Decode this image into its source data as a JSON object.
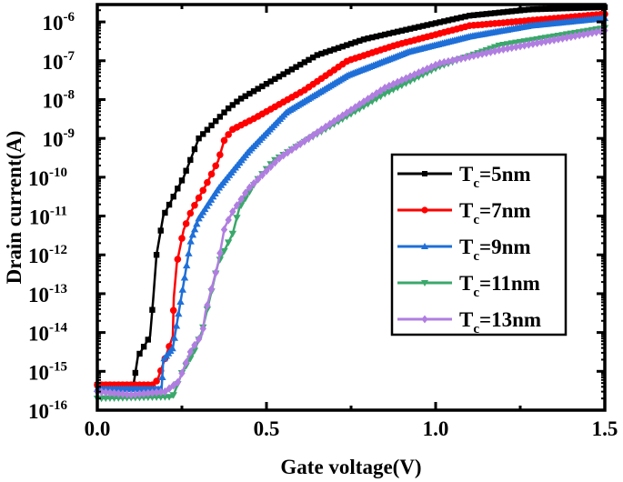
{
  "chart_data": {
    "type": "line",
    "title": "",
    "xlabel": "Gate voltage(V)",
    "ylabel": "Drain current(A)",
    "xlim": [
      0,
      1.5
    ],
    "ylim": [
      1e-16,
      2.8e-06
    ],
    "yscale": "log",
    "grid": false,
    "legend_position": "center-right",
    "xticks": [
      "0.0",
      "0.5",
      "1.0",
      "1.5"
    ],
    "xtick_values": [
      0,
      0.5,
      1.0,
      1.5
    ],
    "yticks": [
      {
        "base": "10",
        "exp": "-16"
      },
      {
        "base": "10",
        "exp": "-15"
      },
      {
        "base": "10",
        "exp": "-14"
      },
      {
        "base": "10",
        "exp": "-13"
      },
      {
        "base": "10",
        "exp": "-12"
      },
      {
        "base": "10",
        "exp": "-11"
      },
      {
        "base": "10",
        "exp": "-10"
      },
      {
        "base": "10",
        "exp": "-9"
      },
      {
        "base": "10",
        "exp": "-8"
      },
      {
        "base": "10",
        "exp": "-7"
      },
      {
        "base": "10",
        "exp": "-6"
      }
    ],
    "series": [
      {
        "label": {
          "base": "T",
          "sub": "c",
          "value": "=5nm"
        },
        "color": "#000000",
        "marker": "square",
        "x": [
          0,
          0.107,
          0.12,
          0.156,
          0.165,
          0.175,
          0.195,
          0.255,
          0.3,
          0.384,
          0.42,
          0.52,
          0.65,
          0.79,
          0.92,
          1.1,
          1.28,
          1.5
        ],
        "y": [
          4.5e-16,
          4.5e-16,
          2.4e-15,
          8e-15,
          7e-14,
          1e-12,
          1e-11,
          1e-10,
          1e-09,
          5.6e-09,
          1e-08,
          3.2e-08,
          1.4e-07,
          3.6e-07,
          6.5e-07,
          1.45e-06,
          2.1e-06,
          2.4e-06
        ]
      },
      {
        "label": {
          "base": "T",
          "sub": "c",
          "value": "=7nm"
        },
        "color": "#ff0000",
        "marker": "circle",
        "x": [
          0,
          0.165,
          0.178,
          0.223,
          0.226,
          0.235,
          0.255,
          0.277,
          0.32,
          0.357,
          0.376,
          0.4,
          0.465,
          0.61,
          0.74,
          0.88,
          1.1,
          1.5
        ],
        "y": [
          4.5e-16,
          4.5e-16,
          6e-16,
          8e-15,
          8e-14,
          6e-13,
          4.4e-12,
          1.3e-11,
          6e-11,
          2.6e-10,
          9.5e-10,
          1.7e-09,
          3.3e-09,
          1.7e-08,
          1e-07,
          2.5e-07,
          8e-07,
          1.6e-06
        ]
      },
      {
        "label": {
          "base": "T",
          "sub": "c",
          "value": "=9nm"
        },
        "color": "#1f6fd8",
        "marker": "triangle-up",
        "x": [
          0,
          0.19,
          0.195,
          0.223,
          0.25,
          0.277,
          0.3,
          0.357,
          0.446,
          0.56,
          0.74,
          0.92,
          1.1,
          1.28,
          1.5
        ],
        "y": [
          3.5e-16,
          3.5e-16,
          2e-15,
          4e-15,
          1e-13,
          2.5e-12,
          8.7e-12,
          5e-11,
          4.5e-10,
          4.8e-09,
          4.2e-08,
          1.7e-07,
          4.2e-07,
          8e-07,
          1.25e-06
        ]
      },
      {
        "label": {
          "base": "T",
          "sub": "c",
          "value": "=11nm"
        },
        "color": "#3aa86b",
        "marker": "triangle-down",
        "x": [
          0,
          0.223,
          0.25,
          0.285,
          0.31,
          0.357,
          0.4,
          0.42,
          0.47,
          0.52,
          0.58,
          0.715,
          0.85,
          1.01,
          1.19,
          1.5
        ],
        "y": [
          2e-16,
          2.2e-16,
          9e-16,
          3e-15,
          1.1e-14,
          6e-13,
          3.5e-12,
          1.6e-11,
          8e-11,
          2.6e-10,
          5.5e-10,
          2.8e-09,
          1.4e-08,
          7e-08,
          2.5e-07,
          7e-07
        ]
      },
      {
        "label": {
          "base": "T",
          "sub": "c",
          "value": "=13nm"
        },
        "color": "#b07ee0",
        "marker": "diamond",
        "x": [
          0,
          0.1,
          0.2,
          0.24,
          0.277,
          0.31,
          0.32,
          0.357,
          0.376,
          0.4,
          0.446,
          0.54,
          0.715,
          0.85,
          1.01,
          1.19,
          1.5
        ],
        "y": [
          3e-16,
          2.5e-16,
          3e-16,
          5.4e-16,
          3.5e-15,
          9e-15,
          3.4e-14,
          6e-13,
          5e-12,
          1.3e-11,
          5e-11,
          3.2e-10,
          3.4e-09,
          2e-08,
          8.5e-08,
          1.9e-07,
          6e-07
        ]
      }
    ]
  }
}
